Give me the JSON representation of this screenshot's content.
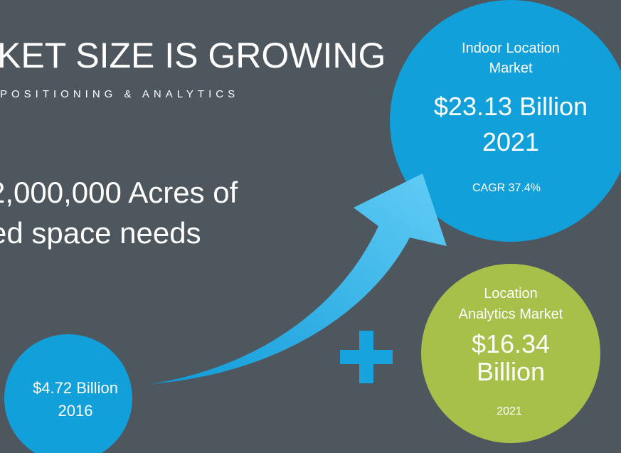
{
  "title": "KET SIZE IS GROWING",
  "subtitle": "POSITIONING & ANALYTICS",
  "headline": [
    "2,000,000 Acres of",
    "ed space needs"
  ],
  "bubbles": [
    {
      "lines": [
        "Indoor Location",
        "Market",
        "$23.13 Billion",
        "2021",
        "CAGR 37.4%"
      ]
    },
    {
      "lines": [
        "Location",
        "Analytics Market",
        "$16.34",
        "Billion",
        "2021"
      ]
    },
    {
      "lines": [
        "$4.72 Billion",
        "2016"
      ]
    }
  ]
}
